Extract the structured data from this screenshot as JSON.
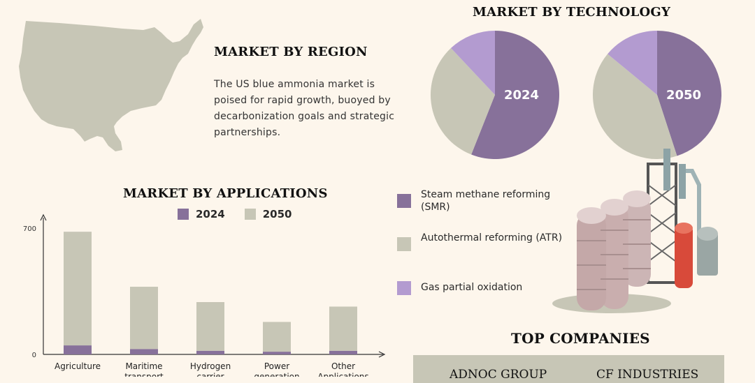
{
  "region": {
    "title": "MARKET BY REGION",
    "text": "The US blue ammonia market is poised for rapid growth, buoyed by decarbonization goals and strategic partnerships."
  },
  "technology": {
    "title": "MARKET BY TECHNOLOGY",
    "legend": [
      {
        "label": "Steam methane reforming (SMR)",
        "color": "#87719a"
      },
      {
        "label": "Autothermal reforming (ATR)",
        "color": "#c7c6b6"
      },
      {
        "label": "Gas partial oxidation",
        "color": "#b39bd0"
      }
    ]
  },
  "applications": {
    "title": "MARKET BY APPLICATIONS",
    "legend": [
      {
        "label": "2024",
        "color": "#87719a"
      },
      {
        "label": "2050",
        "color": "#c7c6b6"
      }
    ]
  },
  "top_companies": {
    "title": "TOP COMPANIES",
    "items": [
      "ADNOC GROUP",
      "CF INDUSTRIES"
    ]
  },
  "colors": {
    "background": "#fdf6ec",
    "purple": "#87719a",
    "gray": "#c7c6b6",
    "lavender": "#b39bd0",
    "map": "#c7c6b6"
  },
  "chart_data": [
    {
      "type": "bar",
      "title": "MARKET BY APPLICATIONS",
      "categories": [
        "Agriculture",
        "Maritime transport",
        "Hydrogen carrier",
        "Power generation",
        "Other Applications"
      ],
      "series": [
        {
          "name": "2024",
          "values": [
            50,
            30,
            20,
            15,
            20
          ]
        },
        {
          "name": "2050",
          "values": [
            630,
            345,
            270,
            165,
            245
          ]
        }
      ],
      "stacked": true,
      "ylim": [
        0,
        700
      ],
      "yticks": [
        "0",
        "700"
      ],
      "legend": "top"
    },
    {
      "type": "pie",
      "label": "2024",
      "labels": [
        "Steam methane reforming (SMR)",
        "Autothermal reforming (ATR)",
        "Gas partial oxidation"
      ],
      "values": [
        56,
        32,
        12
      ]
    },
    {
      "type": "pie",
      "label": "2050",
      "labels": [
        "Steam methane reforming (SMR)",
        "Autothermal reforming (ATR)",
        "Gas partial oxidation"
      ],
      "values": [
        45,
        41,
        14
      ]
    }
  ]
}
